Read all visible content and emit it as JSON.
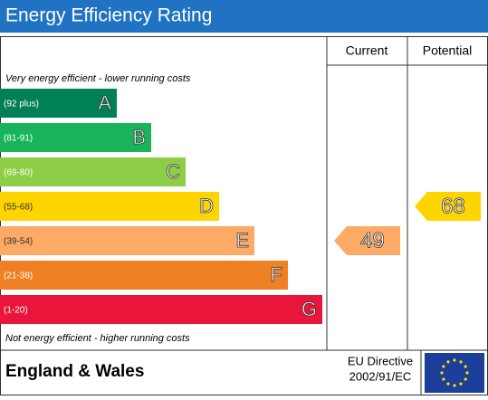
{
  "title": "Energy Efficiency Rating",
  "columns": {
    "current": "Current",
    "potential": "Potential"
  },
  "top_note": "Very energy efficient - lower running costs",
  "bottom_note": "Not energy efficient - higher running costs",
  "bands": [
    {
      "range": "(92 plus)",
      "letter": "A",
      "color": "#008054"
    },
    {
      "range": "(81-91)",
      "letter": "B",
      "color": "#19b459"
    },
    {
      "range": "(69-80)",
      "letter": "C",
      "color": "#8dce46"
    },
    {
      "range": "(55-68)",
      "letter": "D",
      "color": "#ffd500"
    },
    {
      "range": "(39-54)",
      "letter": "E",
      "color": "#fcaa65"
    },
    {
      "range": "(21-38)",
      "letter": "F",
      "color": "#ef8023"
    },
    {
      "range": "(1-20)",
      "letter": "G",
      "color": "#e9153b"
    }
  ],
  "current": 49,
  "potential": 68,
  "footer": {
    "region": "England & Wales",
    "directive_line1": "EU Directive",
    "directive_line2": "2002/91/EC"
  }
}
